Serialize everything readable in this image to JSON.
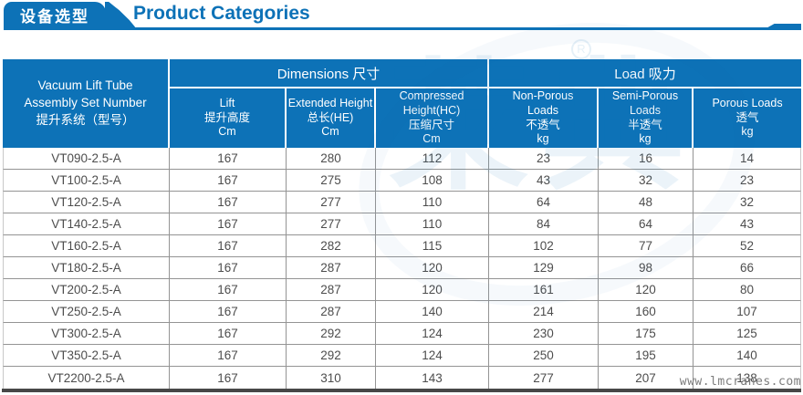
{
  "banner": {
    "tab_label": "设备选型",
    "title": "Product Categories"
  },
  "table": {
    "row_header_lines": [
      "Vacuum Lift Tube",
      "Assembly Set Number",
      "提升系统（型号）"
    ],
    "groups": [
      {
        "label": "Dimensions 尺寸"
      },
      {
        "label": "Load 吸力"
      }
    ],
    "columns": [
      {
        "lines": [
          "Lift",
          "提升高度",
          "Cm"
        ]
      },
      {
        "lines": [
          "Extended Height",
          "总长(HE)",
          "Cm"
        ]
      },
      {
        "lines": [
          "Compressed",
          "Height(HC)",
          "压缩尺寸",
          "Cm"
        ]
      },
      {
        "lines": [
          "Non-Porous",
          "Loads",
          "不透气",
          "kg"
        ]
      },
      {
        "lines": [
          "Semi-Porous",
          "Loads",
          "半透气",
          "kg"
        ]
      },
      {
        "lines": [
          "Porous Loads",
          "透气",
          "kg"
        ]
      }
    ],
    "rows": [
      {
        "model": "VT090-2.5-A",
        "values": [
          "167",
          "280",
          "112",
          "23",
          "16",
          "14"
        ]
      },
      {
        "model": "VT100-2.5-A",
        "values": [
          "167",
          "275",
          "108",
          "43",
          "32",
          "23"
        ]
      },
      {
        "model": "VT120-2.5-A",
        "values": [
          "167",
          "277",
          "110",
          "64",
          "48",
          "32"
        ]
      },
      {
        "model": "VT140-2.5-A",
        "values": [
          "167",
          "277",
          "110",
          "84",
          "64",
          "43"
        ]
      },
      {
        "model": "VT160-2.5-A",
        "values": [
          "167",
          "282",
          "115",
          "102",
          "77",
          "52"
        ]
      },
      {
        "model": "VT180-2.5-A",
        "values": [
          "167",
          "287",
          "120",
          "129",
          "98",
          "66"
        ]
      },
      {
        "model": "VT200-2.5-A",
        "values": [
          "167",
          "287",
          "120",
          "161",
          "120",
          "80"
        ]
      },
      {
        "model": "VT250-2.5-A",
        "values": [
          "167",
          "287",
          "140",
          "214",
          "160",
          "107"
        ]
      },
      {
        "model": "VT300-2.5-A",
        "values": [
          "167",
          "292",
          "124",
          "230",
          "175",
          "125"
        ]
      },
      {
        "model": "VT350-2.5-A",
        "values": [
          "167",
          "292",
          "124",
          "250",
          "195",
          "140"
        ]
      },
      {
        "model": "VT2200-2.5-A",
        "values": [
          "167",
          "310",
          "143",
          "277",
          "207",
          "138"
        ]
      }
    ]
  },
  "watermark": {
    "site_text": "www.lmcranes.com",
    "logo_glyphs": "莱典",
    "registered_mark": "R"
  },
  "colors": {
    "header_blue": "#0d72b7",
    "grid_gray": "#949494",
    "outer_gray": "#c9c9c9",
    "cell_text": "#4d4d4d",
    "bottom_bar": "#474747",
    "watermark_gray": "#7d7d7d"
  }
}
